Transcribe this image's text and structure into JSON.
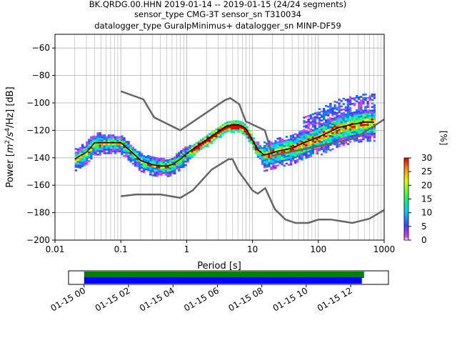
{
  "title": {
    "line1": "BK.QRDG.00.HHN   2019-01-14 -- 2019-01-15  (24/24 segments)",
    "line2": "sensor_type CMG-3T sensor_sn T310034",
    "line3": "datalogger_type GuralpMinimus+ datalogger_sn MINP-DF59"
  },
  "colors": {
    "model_curve": "#666666",
    "mean_curve": "#000000",
    "coverage_data": "#0000ff",
    "coverage_gaps": "#008000",
    "grid": "#b0b0b0"
  },
  "chart_data": [
    {
      "type": "heatmap",
      "title": "",
      "xlabel": "Period [s]",
      "ylabel_prefix": "Power [",
      "ylabel_unit_base": "m",
      "ylabel_unit_sup1": "2",
      "ylabel_unit_mid": "/s",
      "ylabel_unit_sup2": "4",
      "ylabel_unit_end": "/Hz] [dB]",
      "x_scale": "log",
      "xlim": [
        0.01,
        1000
      ],
      "ylim": [
        -200,
        -50
      ],
      "grid": true,
      "x_ticks": [
        {
          "value": 0.01,
          "label": "0.01"
        },
        {
          "value": 0.1,
          "label": "0.1"
        },
        {
          "value": 1,
          "label": "1"
        },
        {
          "value": 10,
          "label": "10"
        },
        {
          "value": 100,
          "label": "100"
        },
        {
          "value": 1000,
          "label": "1000"
        }
      ],
      "y_ticks": [
        {
          "value": -60,
          "label": "−60"
        },
        {
          "value": -80,
          "label": "−80"
        },
        {
          "value": -100,
          "label": "−100"
        },
        {
          "value": -120,
          "label": "−120"
        },
        {
          "value": -140,
          "label": "−140"
        },
        {
          "value": -160,
          "label": "−160"
        },
        {
          "value": -180,
          "label": "−180"
        },
        {
          "value": -200,
          "label": "−200"
        }
      ],
      "new_high_noise_model": {
        "x": [
          0.1,
          0.22,
          0.32,
          0.8,
          3.8,
          4.6,
          6.3,
          7.9,
          15.4,
          20,
          354.8,
          1000
        ],
        "y": [
          -91.5,
          -97.4,
          -110.5,
          -120,
          -98,
          -96.5,
          -101,
          -113.5,
          -120,
          -138.5,
          -126,
          -112
        ]
      },
      "new_low_noise_model": {
        "x": [
          0.1,
          0.17,
          0.4,
          0.8,
          1.24,
          2.4,
          4.3,
          5,
          6,
          10,
          12,
          15.6,
          21.9,
          31.6,
          45,
          70,
          101,
          154,
          328,
          600,
          1000
        ],
        "y": [
          -168,
          -166.7,
          -166.7,
          -169.2,
          -163.7,
          -148.6,
          -141.1,
          -141.1,
          -149,
          -163.8,
          -166.2,
          -162.1,
          -177.5,
          -185,
          -187.5,
          -187.5,
          -185,
          -185,
          -187.5,
          -184.4,
          -178
        ]
      },
      "mean_psd": {
        "x": [
          0.02,
          0.025,
          0.03,
          0.04,
          0.05,
          0.07,
          0.1,
          0.14,
          0.2,
          0.3,
          0.4,
          0.5,
          0.6,
          0.8,
          1,
          1.5,
          2,
          3,
          4,
          5,
          6,
          7,
          8,
          10,
          12,
          15,
          18,
          25,
          40,
          60,
          100,
          150,
          200,
          300,
          500,
          700
        ],
        "y": [
          -141,
          -138,
          -136,
          -129,
          -129,
          -129,
          -129,
          -135,
          -142,
          -145,
          -146,
          -146,
          -145,
          -141,
          -137,
          -131,
          -127,
          -121,
          -117,
          -116,
          -116,
          -117,
          -119,
          -127,
          -134,
          -138,
          -137,
          -135,
          -133,
          -129,
          -125,
          -121,
          -118,
          -116,
          -114,
          -114
        ]
      },
      "colorbar": {
        "label": "[%]",
        "range": [
          0,
          30
        ],
        "ticks": [
          "0",
          "5",
          "10",
          "15",
          "20",
          "25",
          "30"
        ]
      }
    },
    {
      "type": "timeline",
      "title": "",
      "x_ticks": [
        "01-15 00",
        "01-15 02",
        "01-15 04",
        "01-15 06",
        "01-15 08",
        "01-15 10",
        "01-15 12"
      ],
      "x_range_hours": [
        -0.7,
        13.7
      ],
      "coverage_bars": [
        {
          "series": "gaps",
          "start_hour": 0.0,
          "end_hour": 12.6
        },
        {
          "series": "data",
          "start_hour": 0.0,
          "end_hour": 12.5
        }
      ]
    }
  ]
}
